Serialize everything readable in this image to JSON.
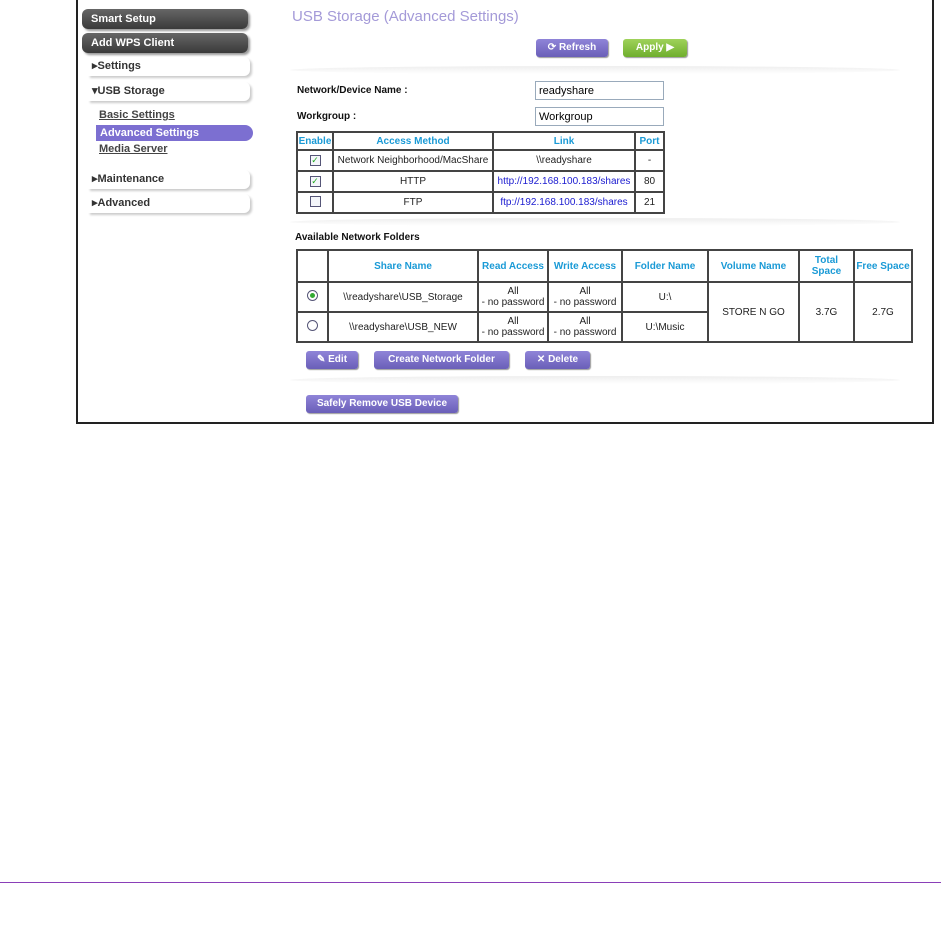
{
  "sidebar": {
    "smart_setup": "Smart Setup",
    "add_wps": "Add WPS Client",
    "settings": "▸Settings",
    "usb_storage": "▾USB Storage",
    "basic": "Basic Settings",
    "advanced_settings": "Advanced Settings",
    "media": "Media Server",
    "maintenance": "▸Maintenance",
    "advanced": "▸Advanced"
  },
  "page": {
    "title": "USB Storage (Advanced Settings)",
    "refresh": "Refresh",
    "apply": "Apply ▶",
    "device_name_label": "Network/Device Name :",
    "device_name": "readyshare",
    "workgroup_label": "Workgroup :",
    "workgroup": "Workgroup"
  },
  "access": {
    "headers": [
      "Enable",
      "Access Method",
      "Link",
      "Port"
    ],
    "rows": [
      {
        "enabled": true,
        "method": "Network Neighborhood/MacShare",
        "link": "\\\\readyshare",
        "port": "-"
      },
      {
        "enabled": true,
        "method": "HTTP",
        "link": "http://192.168.100.183/shares",
        "port": "80"
      },
      {
        "enabled": false,
        "method": "FTP",
        "link": "ftp://192.168.100.183/shares",
        "port": "21"
      }
    ]
  },
  "folders": {
    "title": "Available Network Folders",
    "headers": [
      "",
      "Share Name",
      "Read Access",
      "Write Access",
      "Folder Name",
      "Volume Name",
      "Total Space",
      "Free Space"
    ],
    "access_all": "All",
    "no_password": "- no password",
    "rows": [
      {
        "selected": true,
        "share": "\\\\readyshare\\USB_Storage",
        "folder": "U:\\"
      },
      {
        "selected": false,
        "share": "\\\\readyshare\\USB_NEW",
        "folder": "U:\\Music"
      }
    ],
    "volume": "STORE N GO",
    "total": "3.7G",
    "free": "2.7G"
  },
  "buttons": {
    "edit": "Edit",
    "create": "Create Network Folder",
    "delete": "Delete",
    "remove": "Safely Remove USB Device"
  },
  "colors": {
    "accent": "#7c6fd1",
    "apply": "#7fbf3a",
    "header_text": "#1a9ad6"
  }
}
